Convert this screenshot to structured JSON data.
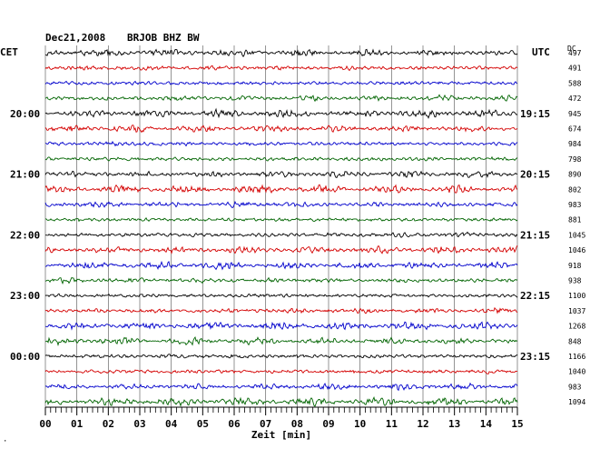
{
  "header": {
    "date": "Dec21,2008",
    "station": "BRJOB BHZ BW",
    "left_tz": "CET",
    "right_tz": "UTC",
    "dc_label": "DC"
  },
  "footer": {
    "xlabel": "Zeit [min]",
    "corner_mark": "·"
  },
  "colors": {
    "cycle": [
      "#000000",
      "#d40000",
      "#0000cc",
      "#006400"
    ],
    "grid": "#666666"
  },
  "chart_data": {
    "type": "line",
    "title": "Dec21,2008   BRJOB BHZ BW",
    "xlabel": "Zeit [min]",
    "x_range": [
      0,
      15
    ],
    "x_ticks": [
      "00",
      "01",
      "02",
      "03",
      "04",
      "05",
      "06",
      "07",
      "08",
      "09",
      "10",
      "11",
      "12",
      "13",
      "14",
      "15"
    ],
    "trace_count": 24,
    "trace_minutes": 15,
    "left_time_labels": [
      {
        "trace_index": 4,
        "label": "20:00"
      },
      {
        "trace_index": 8,
        "label": "21:00"
      },
      {
        "trace_index": 12,
        "label": "22:00"
      },
      {
        "trace_index": 16,
        "label": "23:00"
      },
      {
        "trace_index": 20,
        "label": "00:00"
      }
    ],
    "right_time_labels": [
      {
        "trace_index": 4,
        "label": "19:15"
      },
      {
        "trace_index": 8,
        "label": "20:15"
      },
      {
        "trace_index": 12,
        "label": "21:15"
      },
      {
        "trace_index": 16,
        "label": "22:15"
      },
      {
        "trace_index": 20,
        "label": "23:15"
      }
    ],
    "dc_offsets": [
      497,
      491,
      588,
      472,
      945,
      674,
      984,
      798,
      890,
      802,
      983,
      881,
      1045,
      1046,
      918,
      938,
      1100,
      1037,
      1268,
      848,
      1166,
      1040,
      983,
      1094
    ]
  }
}
